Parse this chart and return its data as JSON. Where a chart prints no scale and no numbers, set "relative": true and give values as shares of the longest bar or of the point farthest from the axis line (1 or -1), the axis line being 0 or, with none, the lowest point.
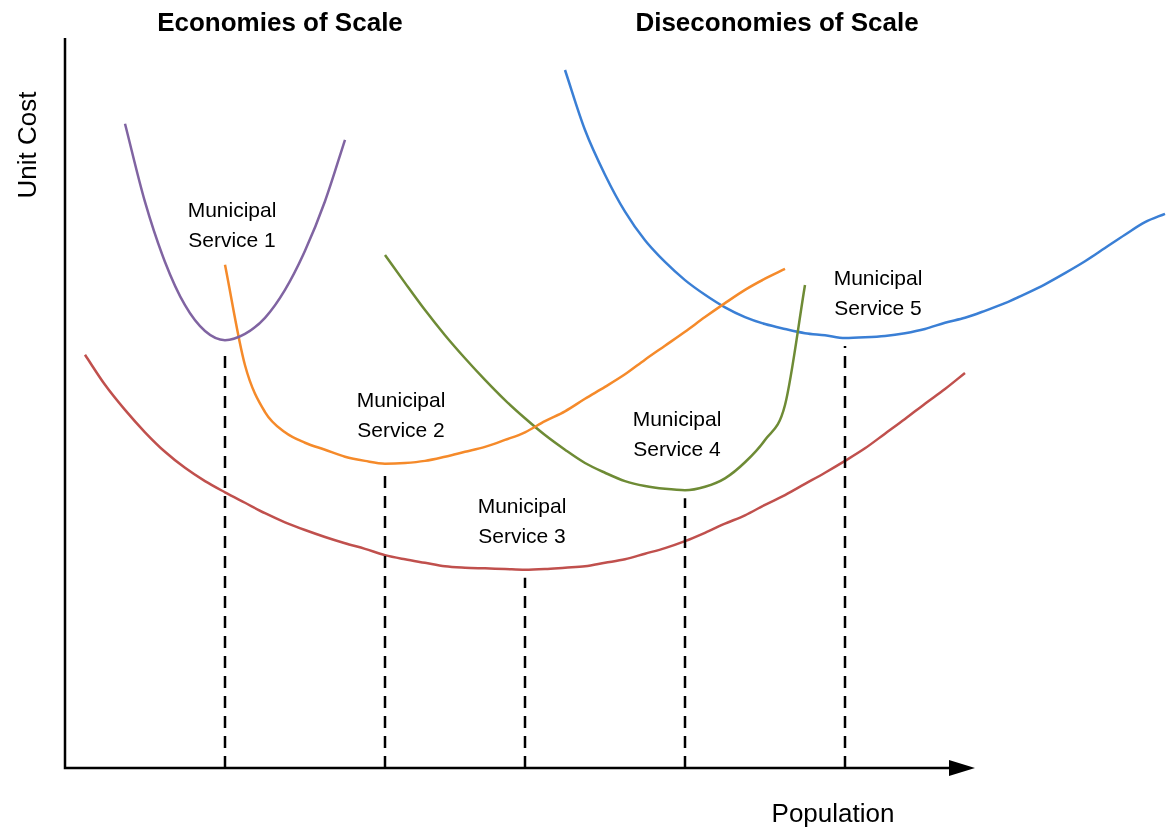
{
  "chart_data": {
    "type": "line",
    "relative": true,
    "annotations": [
      "Economies of Scale",
      "Diseconomies of Scale"
    ],
    "xlabel": "Population",
    "ylabel": "Unit Cost",
    "categories": [
      null,
      null,
      null,
      null,
      null,
      null,
      null,
      null,
      null,
      null,
      null,
      null,
      null,
      null,
      null,
      null,
      null,
      null,
      null,
      null,
      null,
      null,
      null,
      null,
      null,
      null,
      null,
      null,
      null,
      null,
      null,
      null,
      null,
      null,
      null,
      null,
      null,
      null,
      null,
      null,
      null,
      null,
      null,
      null,
      null,
      null,
      null,
      null,
      null,
      null,
      null,
      null,
      null,
      null,
      null,
      null
    ],
    "series": [
      {
        "name": "Municipal Service 1",
        "color": "#8064a2",
        "values": [
          null,
          null,
          null,
          0.923,
          0.811,
          0.725,
          0.663,
          0.626,
          0.613,
          0.622,
          0.645,
          0.685,
          0.741,
          0.812,
          0.9,
          null,
          null,
          null,
          null,
          null,
          null,
          null,
          null,
          null,
          null,
          null,
          null,
          null,
          null,
          null,
          null,
          null,
          null,
          null,
          null,
          null,
          null,
          null,
          null,
          null,
          null,
          null,
          null,
          null,
          null,
          null,
          null,
          null,
          null,
          null,
          null,
          null,
          null,
          null,
          null,
          null
        ]
      },
      {
        "name": "Municipal Service 2",
        "color": "#f58a2a",
        "values": [
          null,
          null,
          null,
          null,
          null,
          null,
          null,
          null,
          0.721,
          0.577,
          0.51,
          0.481,
          0.466,
          0.456,
          0.446,
          0.44,
          0.436,
          0.437,
          0.44,
          0.446,
          0.453,
          0.46,
          0.47,
          0.481,
          0.497,
          0.511,
          0.529,
          0.546,
          0.564,
          0.585,
          0.605,
          0.625,
          0.646,
          0.666,
          0.685,
          0.701,
          0.715,
          null,
          null,
          null,
          null,
          null,
          null,
          null,
          null,
          null,
          null,
          null,
          null,
          null,
          null,
          null,
          null,
          null,
          null,
          null
        ]
      },
      {
        "name": "Municipal Service 3",
        "color": "#c0504d",
        "values": [
          null,
          0.592,
          0.549,
          0.513,
          0.481,
          0.453,
          0.43,
          0.411,
          0.395,
          0.38,
          0.365,
          0.352,
          0.341,
          0.331,
          0.322,
          0.314,
          0.305,
          0.299,
          0.294,
          0.289,
          0.287,
          0.286,
          0.285,
          0.284,
          0.285,
          0.287,
          0.289,
          0.294,
          0.299,
          0.307,
          0.315,
          0.325,
          0.337,
          0.35,
          0.362,
          0.377,
          0.391,
          0.407,
          0.423,
          0.44,
          0.458,
          0.479,
          0.5,
          0.522,
          0.543,
          0.566,
          null,
          null,
          null,
          null,
          null,
          null,
          null,
          null,
          null,
          null
        ]
      },
      {
        "name": "Municipal Service 4",
        "color": "#6e8b35",
        "values": [
          null,
          null,
          null,
          null,
          null,
          null,
          null,
          null,
          null,
          null,
          null,
          null,
          null,
          null,
          null,
          null,
          0.735,
          0.695,
          0.656,
          0.62,
          0.587,
          0.556,
          0.527,
          0.501,
          0.477,
          0.456,
          0.437,
          0.423,
          0.411,
          0.404,
          0.4,
          0.398,
          0.403,
          0.415,
          0.438,
          0.47,
          0.52,
          0.692,
          null,
          null,
          null,
          null,
          null,
          null,
          null,
          null,
          null,
          null,
          null,
          null,
          null,
          null,
          null,
          null,
          null,
          null
        ]
      },
      {
        "name": "Municipal Service 5",
        "color": "#3a7fd5",
        "values": [
          null,
          null,
          null,
          null,
          null,
          null,
          null,
          null,
          null,
          null,
          null,
          null,
          null,
          null,
          null,
          null,
          null,
          null,
          null,
          null,
          null,
          null,
          null,
          null,
          null,
          1.0,
          0.914,
          0.85,
          0.797,
          0.756,
          0.725,
          0.699,
          0.678,
          0.66,
          0.646,
          0.636,
          0.629,
          0.623,
          0.62,
          0.616,
          0.617,
          0.619,
          0.623,
          0.629,
          0.638,
          0.645,
          0.655,
          0.666,
          0.679,
          0.693,
          0.709,
          0.726,
          0.745,
          0.764,
          0.782,
          0.794
        ]
      }
    ],
    "legend": false,
    "marker": "none",
    "line_style": "solid"
  }
}
